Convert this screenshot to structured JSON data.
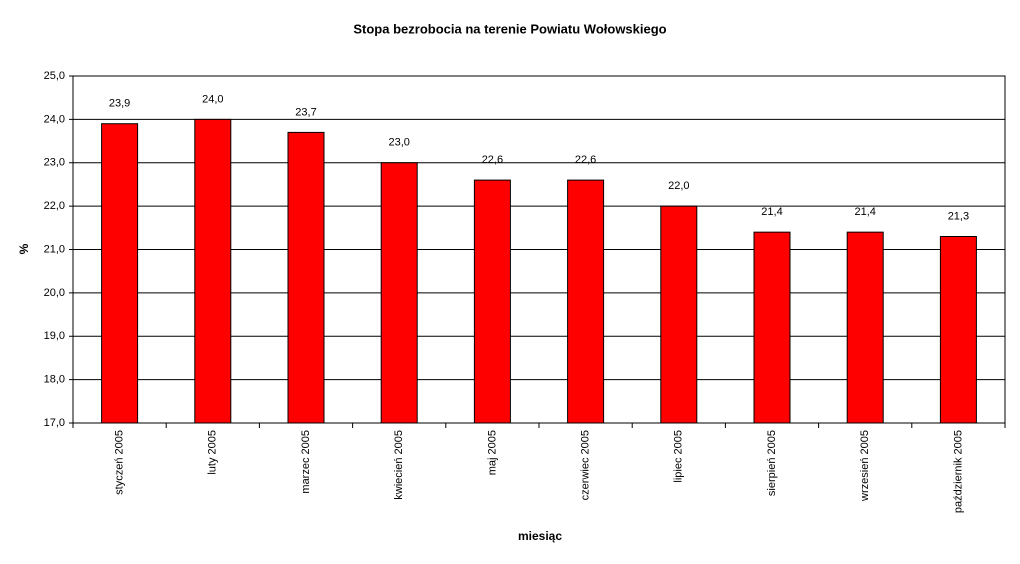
{
  "chart_data": {
    "type": "bar",
    "title": "Stopa bezrobocia na terenie Powiatu Wołowskiego",
    "x_label": "miesiąc",
    "y_label": "%",
    "categories": [
      "styczeń 2005",
      "luty 2005",
      "marzec 2005",
      "kwiecień 2005",
      "maj 2005",
      "czerwiec 2005",
      "lipiec 2005",
      "sierpień 2005",
      "wrzesień 2005",
      "październik 2005"
    ],
    "values": [
      23.9,
      24.0,
      23.7,
      23.0,
      22.6,
      22.6,
      22.0,
      21.4,
      21.4,
      21.3
    ],
    "value_labels": [
      "23,9",
      "24,0",
      "23,7",
      "23,0",
      "22,6",
      "22,6",
      "22,0",
      "21,4",
      "21,4",
      "21,3"
    ],
    "color": "#ff0000",
    "ylim": [
      17,
      25
    ],
    "yticks": [
      {
        "value": 17,
        "label": "17,0"
      },
      {
        "value": 18,
        "label": "18,0"
      },
      {
        "value": 19,
        "label": "19,0"
      },
      {
        "value": 20,
        "label": "20,0"
      },
      {
        "value": 21,
        "label": "21,0"
      },
      {
        "value": 22,
        "label": "22,0"
      },
      {
        "value": 23,
        "label": "23,0"
      },
      {
        "value": 24,
        "label": "24,0"
      },
      {
        "value": 25,
        "label": "25,0"
      }
    ],
    "grid": true
  }
}
